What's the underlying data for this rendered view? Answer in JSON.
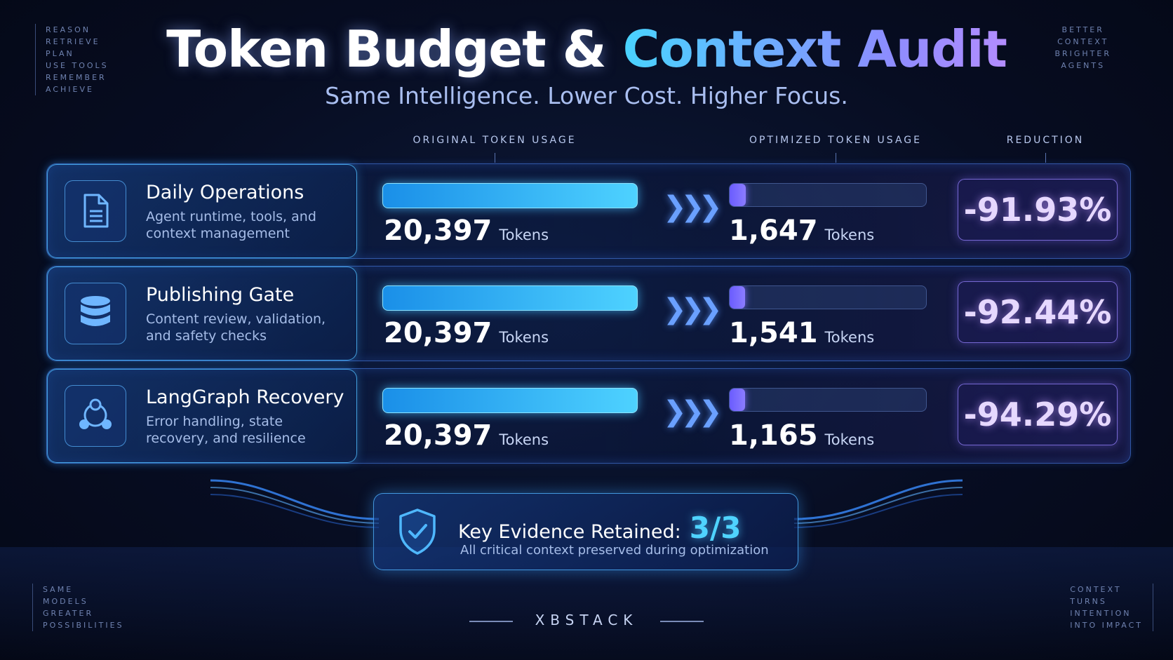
{
  "corners": {
    "top_left": [
      "REASON",
      "RETRIEVE",
      "PLAN",
      "USE TOOLS",
      "REMEMBER",
      "ACHIEVE"
    ],
    "top_right": [
      "BETTER",
      "CONTEXT",
      "BRIGHTER",
      "AGENTS"
    ],
    "bottom_left": [
      "SAME",
      "MODELS",
      "GREATER",
      "POSSIBILITIES"
    ],
    "bottom_right": [
      "CONTEXT",
      "TURNS",
      "INTENTION",
      "INTO IMPACT"
    ]
  },
  "header": {
    "title_part1": "Token Budget & ",
    "title_part2": "Context Audit",
    "subtitle": "Same Intelligence. Lower Cost. Higher Focus."
  },
  "columns": {
    "original": "ORIGINAL TOKEN USAGE",
    "optimized": "OPTIMIZED TOKEN USAGE",
    "reduction": "REDUCTION"
  },
  "unit_label": "Tokens",
  "rows": [
    {
      "title": "Daily Operations",
      "desc": "Agent runtime, tools, and context management",
      "icon": "document-icon",
      "original": "20,397",
      "optimized": "1,647",
      "original_value": 20397,
      "optimized_value": 1647,
      "reduction": "-91.93%"
    },
    {
      "title": "Publishing Gate",
      "desc": "Content review, validation, and safety checks",
      "icon": "database-icon",
      "original": "20,397",
      "optimized": "1,541",
      "original_value": 20397,
      "optimized_value": 1541,
      "reduction": "-92.44%"
    },
    {
      "title": "LangGraph Recovery",
      "desc": "Error handling, state recovery, and resilience",
      "icon": "graph-icon",
      "original": "20,397",
      "optimized": "1,165",
      "original_value": 20397,
      "optimized_value": 1165,
      "reduction": "-94.29%"
    }
  ],
  "evidence": {
    "label": "Key Evidence Retained:",
    "value": "3/3",
    "sub": "All critical context preserved during optimization",
    "icon": "shield-check-icon"
  },
  "brand": "XBSTACK",
  "colors": {
    "accent_cyan": "#4fd3ff",
    "accent_purple": "#8b7cff",
    "background": "#070d22"
  }
}
